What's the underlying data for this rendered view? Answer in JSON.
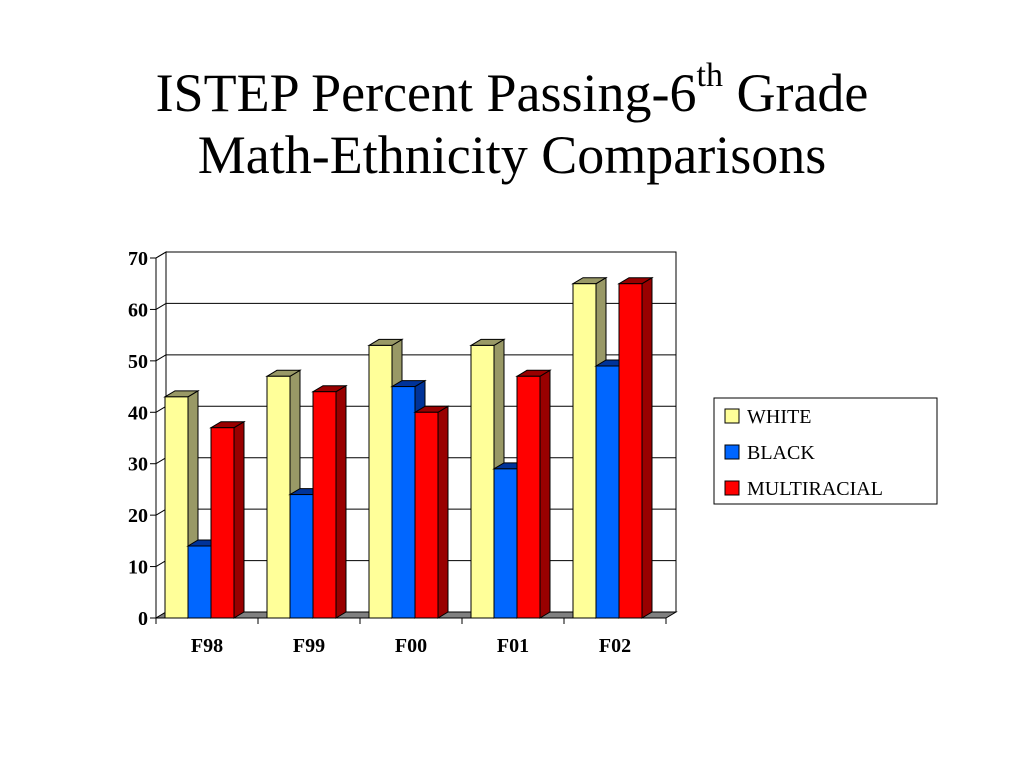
{
  "title": {
    "line1_before": "ISTEP Percent Passing-6",
    "line1_sup": "th",
    "line1_after": " Grade",
    "line2": "Math-Ethnicity Comparisons"
  },
  "colors": {
    "white_front": "#FFFF99",
    "white_side": "#999966",
    "black_front": "#0066FF",
    "black_side": "#003399",
    "multi_front": "#FF0000",
    "multi_side": "#990000",
    "gridline": "#000000",
    "floor": "#808080"
  },
  "chart_data": {
    "type": "bar",
    "title": "ISTEP Percent Passing-6th Grade Math-Ethnicity Comparisons",
    "categories": [
      "F98",
      "F99",
      "F00",
      "F01",
      "F02"
    ],
    "series": [
      {
        "name": "WHITE",
        "values": [
          43,
          47,
          53,
          53,
          65
        ]
      },
      {
        "name": "BLACK",
        "values": [
          14,
          24,
          45,
          29,
          49
        ]
      },
      {
        "name": "MULTIRACIAL",
        "values": [
          37,
          44,
          40,
          47,
          65
        ]
      }
    ],
    "ylim": [
      0,
      70
    ],
    "yticks": [
      "0",
      "10",
      "20",
      "30",
      "40",
      "50",
      "60",
      "70"
    ],
    "xlabel": "",
    "ylabel": "",
    "grid": true,
    "legend_position": "right",
    "style": "3d-clustered-column"
  }
}
